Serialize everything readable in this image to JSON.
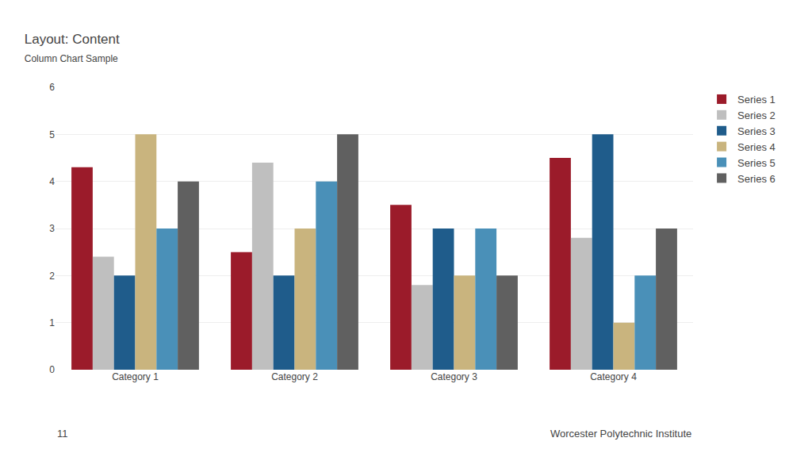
{
  "chart_data": {
    "type": "bar",
    "title": "Layout: Content",
    "subtitle": "Column Chart Sample",
    "categories": [
      "Category 1",
      "Category 2",
      "Category 3",
      "Category 4"
    ],
    "series": [
      {
        "name": "Series 1",
        "color": "#9B1B2A",
        "values": [
          4.3,
          2.5,
          3.5,
          4.5
        ]
      },
      {
        "name": "Series 2",
        "color": "#BFBFBF",
        "values": [
          2.4,
          4.4,
          1.8,
          2.8
        ]
      },
      {
        "name": "Series 3",
        "color": "#1F5C8B",
        "values": [
          2.0,
          2.0,
          3.0,
          5.0
        ]
      },
      {
        "name": "Series 4",
        "color": "#C9B47E",
        "values": [
          5.0,
          3.0,
          2.0,
          1.0
        ]
      },
      {
        "name": "Series 5",
        "color": "#4A90B8",
        "values": [
          3.0,
          4.0,
          3.0,
          2.0
        ]
      },
      {
        "name": "Series 6",
        "color": "#606060",
        "values": [
          4.0,
          5.0,
          2.0,
          3.0
        ]
      }
    ],
    "ylim": [
      0,
      6
    ],
    "yticks": [
      0,
      1,
      2,
      3,
      4,
      5,
      6
    ],
    "grid": true,
    "legend": "right",
    "annotations": [
      "11",
      "Worcester Polytechnic Institute"
    ]
  }
}
